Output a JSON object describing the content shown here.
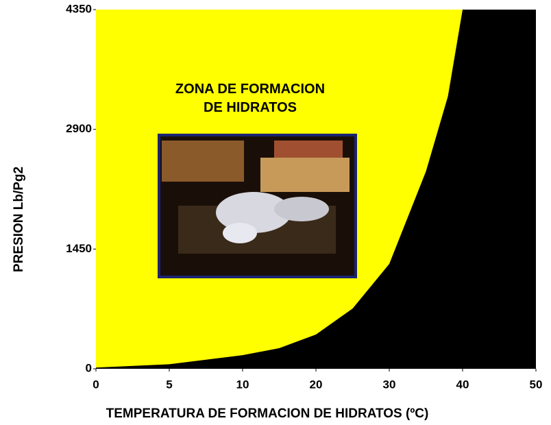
{
  "chart_data": {
    "type": "area",
    "annotation": "ZONA DE FORMACION DE HIDRATOS",
    "x_label": "TEMPERATURA DE FORMACION DE HIDRATOS (ºC)",
    "y_label": "PRESION  Lb/Pg2",
    "x": [
      0,
      5,
      10,
      15,
      20,
      25,
      30,
      35,
      38,
      40
    ],
    "values": [
      15,
      55,
      165,
      250,
      415,
      730,
      1270,
      2390,
      3300,
      4350
    ],
    "xlim": [
      0,
      50
    ],
    "xticks": [
      0,
      5,
      10,
      20,
      30,
      40,
      50
    ],
    "ylim": [
      0,
      4350
    ],
    "yticks": [
      0,
      1450,
      2900,
      4350
    ],
    "color": "#000000",
    "background_color": "#ffff00"
  }
}
